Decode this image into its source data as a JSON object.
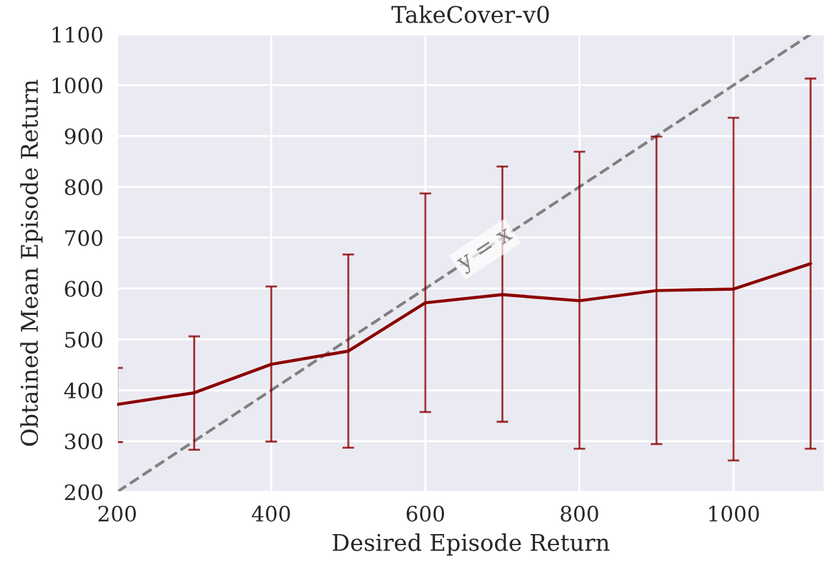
{
  "chart_data": {
    "type": "line",
    "title": "TakeCover-v0",
    "xlabel": "Desired Episode Return",
    "ylabel": "Obtained Mean Episode Return",
    "xlim": [
      200,
      1118
    ],
    "ylim": [
      200,
      1100
    ],
    "xticks": [
      200,
      400,
      600,
      800,
      1000
    ],
    "yticks": [
      200,
      300,
      400,
      500,
      600,
      700,
      800,
      900,
      1000,
      1100
    ],
    "grid": true,
    "marker": "none",
    "series": [
      {
        "color": "#8b0000",
        "line_style": "solid",
        "x": [
          200,
          300,
          400,
          500,
          600,
          700,
          800,
          900,
          1000,
          1100
        ],
        "values": [
          372,
          395,
          451,
          477,
          572,
          588,
          576,
          596,
          599,
          649
        ],
        "errors": [
          [
            298,
            444
          ],
          [
            283,
            506
          ],
          [
            299,
            604
          ],
          [
            287,
            667
          ],
          [
            357,
            787
          ],
          [
            338,
            840
          ],
          [
            285,
            869
          ],
          [
            294,
            899
          ],
          [
            262,
            936
          ],
          [
            285,
            1013
          ]
        ]
      },
      {
        "name": "y = x",
        "color": "#808080",
        "line_style": "dashed",
        "x": [
          200,
          1100
        ],
        "values": [
          200,
          1100
        ]
      }
    ]
  }
}
